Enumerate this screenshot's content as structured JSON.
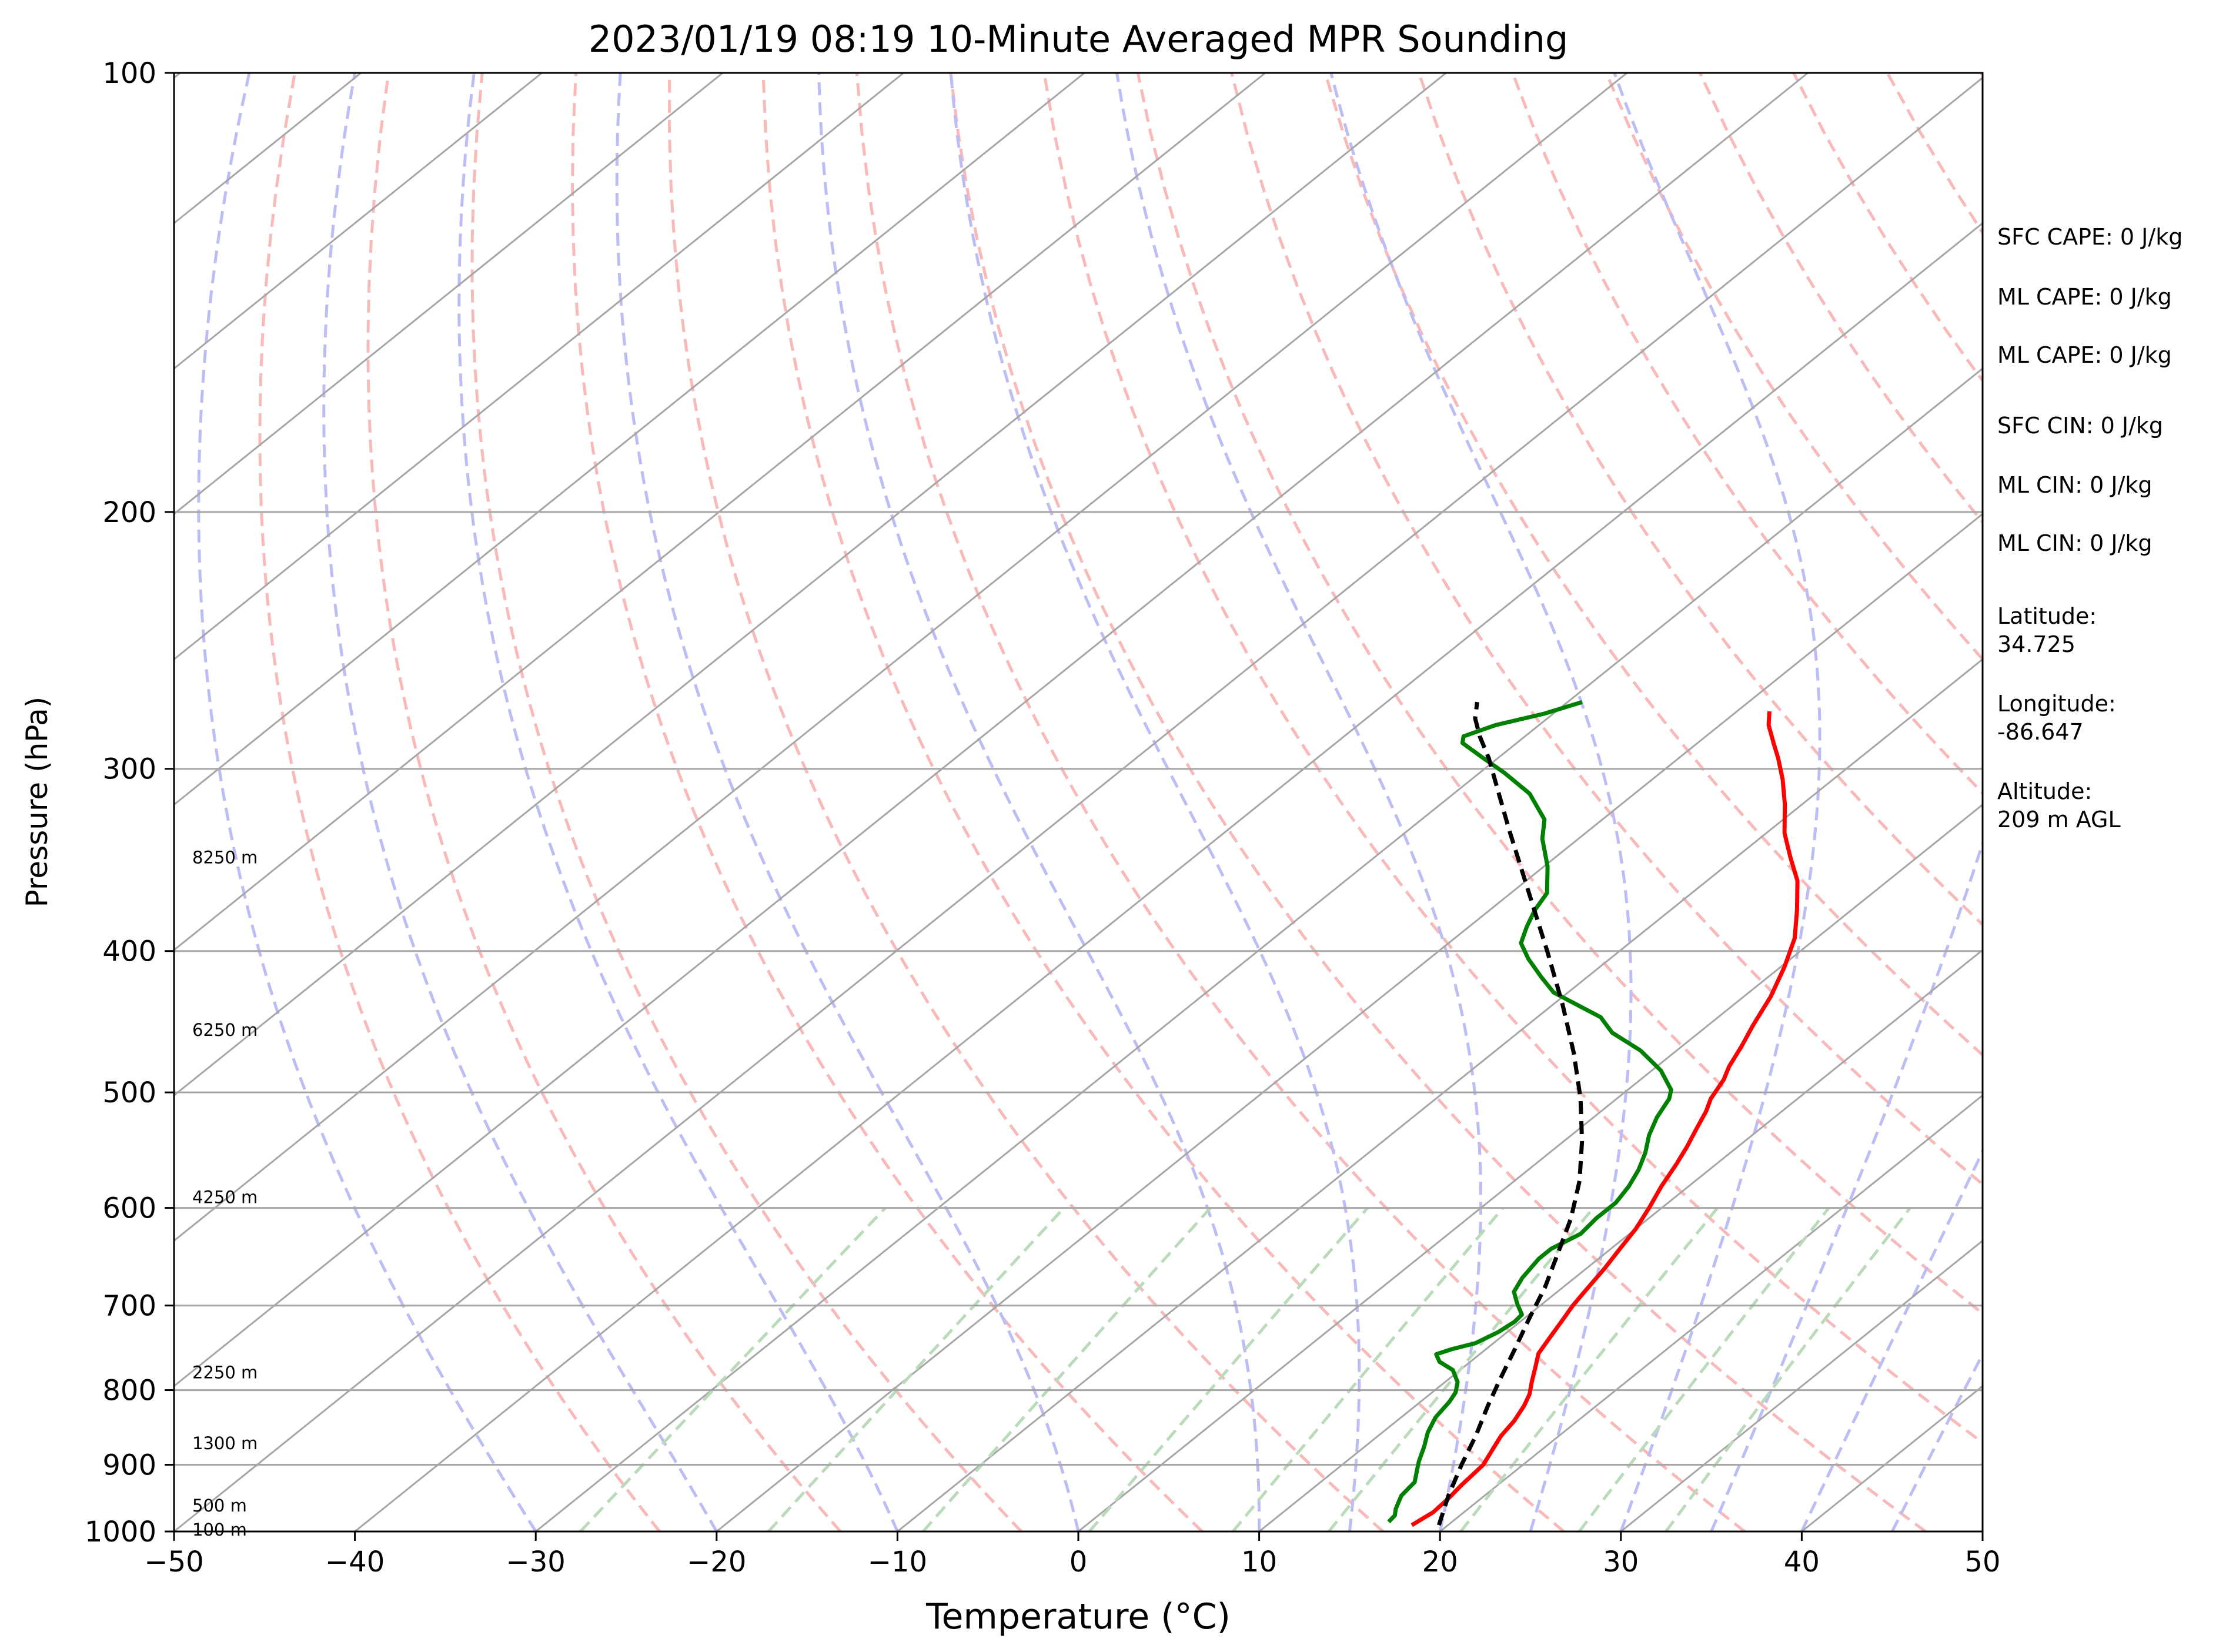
{
  "chart_data": {
    "type": "line",
    "title": "2023/01/19 08:19 10-Minute Averaged MPR Sounding",
    "xlabel": "Temperature (°C)",
    "ylabel": "Pressure (hPa)",
    "xlim": [
      -50,
      50
    ],
    "ylim": [
      1000,
      100
    ],
    "y_scale": "log",
    "x_ticks": [
      "−50",
      "−40",
      "−30",
      "−20",
      "−10",
      "0",
      "10",
      "20",
      "30",
      "40",
      "50"
    ],
    "y_ticks": [
      "100",
      "200",
      "300",
      "400",
      "500",
      "600",
      "700",
      "800",
      "900",
      "1000"
    ],
    "grid": "isobars at 200, 300, 400, 500, 600, 700, 800, 900 hPa",
    "reference_lines": {
      "isotherm_color": "#a6a6a6",
      "dry_adiabat_color": "#f9b9b9",
      "moist_adiabat_color": "#bdbdf5",
      "mixing_ratio_color": "#b9dbb9"
    },
    "height_labels": [
      {
        "label": "8250 m",
        "p": 345
      },
      {
        "label": "6250 m",
        "p": 453
      },
      {
        "label": "4250 m",
        "p": 590
      },
      {
        "label": "2250 m",
        "p": 778
      },
      {
        "label": "1300 m",
        "p": 870
      },
      {
        "label": "500 m",
        "p": 960
      },
      {
        "label": "100 m",
        "p": 997
      }
    ],
    "series": [
      {
        "color": "#ff0000",
        "style": "solid",
        "points": [
          [
            18.0,
            990
          ],
          [
            18.3,
            970
          ],
          [
            18.2,
            950
          ],
          [
            18.0,
            930
          ],
          [
            17.8,
            900
          ],
          [
            17.3,
            880
          ],
          [
            16.8,
            860
          ],
          [
            16.5,
            840
          ],
          [
            16.0,
            820
          ],
          [
            15.5,
            805
          ],
          [
            14.8,
            790
          ],
          [
            13.9,
            770
          ],
          [
            13.2,
            755
          ],
          [
            12.7,
            735
          ],
          [
            12.2,
            715
          ],
          [
            11.8,
            700
          ],
          [
            11.5,
            685
          ],
          [
            11.0,
            660
          ],
          [
            10.5,
            640
          ],
          [
            10.0,
            620
          ],
          [
            9.3,
            600
          ],
          [
            8.5,
            580
          ],
          [
            7.8,
            560
          ],
          [
            7.2,
            545
          ],
          [
            6.5,
            530
          ],
          [
            5.8,
            515
          ],
          [
            5.2,
            505
          ],
          [
            4.6,
            490
          ],
          [
            4.0,
            480
          ],
          [
            3.3,
            465
          ],
          [
            2.5,
            450
          ],
          [
            1.5,
            430
          ],
          [
            0.2,
            410
          ],
          [
            -1.2,
            392
          ],
          [
            -3.0,
            375
          ],
          [
            -5.0,
            358
          ],
          [
            -7.0,
            345
          ],
          [
            -9.0,
            332
          ],
          [
            -11.0,
            317
          ],
          [
            -12.8,
            305
          ],
          [
            -14.5,
            295
          ],
          [
            -15.8,
            288
          ],
          [
            -17.3,
            280
          ],
          [
            -18.2,
            274
          ]
        ]
      },
      {
        "color": "#008000",
        "style": "solid",
        "points": [
          [
            16.5,
            985
          ],
          [
            16.4,
            975
          ],
          [
            16.0,
            965
          ],
          [
            15.7,
            955
          ],
          [
            15.4,
            945
          ],
          [
            15.3,
            935
          ],
          [
            15.2,
            925
          ],
          [
            14.6,
            910
          ],
          [
            14.0,
            895
          ],
          [
            13.3,
            875
          ],
          [
            12.5,
            855
          ],
          [
            11.9,
            835
          ],
          [
            11.6,
            815
          ],
          [
            11.3,
            803
          ],
          [
            10.7,
            790
          ],
          [
            9.6,
            775
          ],
          [
            8.3,
            765
          ],
          [
            7.6,
            756
          ],
          [
            8.1,
            750
          ],
          [
            9.0,
            743
          ],
          [
            9.5,
            730
          ],
          [
            9.7,
            718
          ],
          [
            9.6,
            710
          ],
          [
            8.6,
            698
          ],
          [
            7.6,
            685
          ],
          [
            7.1,
            670
          ],
          [
            6.7,
            650
          ],
          [
            6.7,
            640
          ],
          [
            7.3,
            625
          ],
          [
            7.1,
            610
          ],
          [
            7.1,
            595
          ],
          [
            6.7,
            580
          ],
          [
            6.1,
            565
          ],
          [
            5.3,
            550
          ],
          [
            4.3,
            535
          ],
          [
            3.5,
            520
          ],
          [
            2.9,
            505
          ],
          [
            2.4,
            498
          ],
          [
            0.5,
            483
          ],
          [
            -2.0,
            468
          ],
          [
            -4.8,
            455
          ],
          [
            -6.5,
            444
          ],
          [
            -8.5,
            436
          ],
          [
            -10.8,
            427
          ],
          [
            -12.5,
            417
          ],
          [
            -14.5,
            405
          ],
          [
            -16.0,
            395
          ],
          [
            -16.8,
            385
          ],
          [
            -17.5,
            375
          ],
          [
            -18.0,
            365
          ],
          [
            -19.8,
            350
          ],
          [
            -22.0,
            335
          ],
          [
            -23.2,
            325
          ],
          [
            -25.8,
            312
          ],
          [
            -28.6,
            302
          ],
          [
            -30.8,
            295
          ],
          [
            -33.0,
            288
          ],
          [
            -33.4,
            285
          ],
          [
            -32.4,
            280
          ],
          [
            -30.5,
            275
          ],
          [
            -29.2,
            270
          ]
        ]
      },
      {
        "color": "#000000",
        "style": "dashed",
        "points": [
          [
            19.5,
            990
          ],
          [
            18.0,
            945
          ],
          [
            16.6,
            900
          ],
          [
            15.4,
            860
          ],
          [
            14.0,
            820
          ],
          [
            12.8,
            785
          ],
          [
            11.6,
            750
          ],
          [
            10.3,
            715
          ],
          [
            9.0,
            680
          ],
          [
            7.4,
            645
          ],
          [
            5.7,
            610
          ],
          [
            3.6,
            575
          ],
          [
            1.0,
            540
          ],
          [
            -2.0,
            505
          ],
          [
            -5.5,
            470
          ],
          [
            -9.5,
            435
          ],
          [
            -14.0,
            400
          ],
          [
            -19.0,
            365
          ],
          [
            -24.5,
            330
          ],
          [
            -30.5,
            295
          ],
          [
            -32.5,
            285
          ],
          [
            -34.0,
            277
          ],
          [
            -35.0,
            270
          ]
        ]
      }
    ]
  },
  "info_panel": {
    "sfc_cape": "SFC CAPE: 0 J/kg",
    "ml_cape_1": "ML CAPE: 0 J/kg",
    "ml_cape_2": "ML CAPE: 0 J/kg",
    "sfc_cin": "SFC CIN: 0 J/kg",
    "ml_cin_1": "ML CIN: 0 J/kg",
    "ml_cin_2": "ML CIN: 0 J/kg",
    "latitude_label": "Latitude:",
    "latitude_value": "34.725",
    "longitude_label": "Longitude:",
    "longitude_value": "-86.647",
    "altitude_label": "Altitude:",
    "altitude_value": "209 m AGL"
  }
}
